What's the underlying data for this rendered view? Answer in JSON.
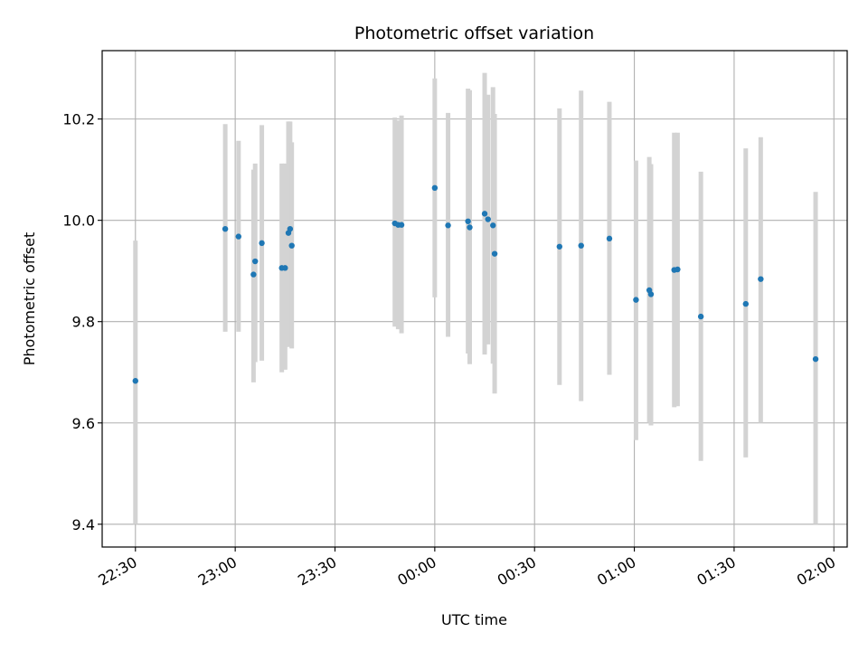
{
  "chart_data": {
    "type": "scatter",
    "title": "Photometric offset variation",
    "xlabel": "UTC time",
    "ylabel": "Photometric offset",
    "x_axis_kind": "time",
    "xlim": [
      "22:20",
      "02:04"
    ],
    "ylim": [
      9.355,
      10.335
    ],
    "grid": true,
    "x_ticks": [
      {
        "time": "22:30",
        "label": "22:30"
      },
      {
        "time": "23:00",
        "label": "23:00"
      },
      {
        "time": "23:30",
        "label": "23:30"
      },
      {
        "time": "00:00",
        "label": "00:00"
      },
      {
        "time": "00:30",
        "label": "00:30"
      },
      {
        "time": "01:00",
        "label": "01:00"
      },
      {
        "time": "01:30",
        "label": "01:30"
      },
      {
        "time": "02:00",
        "label": "02:00"
      }
    ],
    "y_ticks": [
      {
        "value": 9.4,
        "label": "9.4"
      },
      {
        "value": 9.6,
        "label": "9.6"
      },
      {
        "value": 9.8,
        "label": "9.8"
      },
      {
        "value": 10.0,
        "label": "10.0"
      },
      {
        "value": 10.2,
        "label": "10.2"
      }
    ],
    "colors": {
      "point": "#1f77b4",
      "errorbar": "#d3d3d3",
      "grid": "#b0b0b0",
      "axes": "#000000"
    },
    "points": [
      {
        "time": "22:30:00",
        "y": 9.683,
        "err_low": 9.4,
        "err_high": 9.96
      },
      {
        "time": "22:57:00",
        "y": 9.983,
        "err_low": 9.78,
        "err_high": 10.19
      },
      {
        "time": "23:01:00",
        "y": 9.968,
        "err_low": 9.78,
        "err_high": 10.157
      },
      {
        "time": "23:05:30",
        "y": 9.893,
        "err_low": 9.68,
        "err_high": 10.1
      },
      {
        "time": "23:06:00",
        "y": 9.919,
        "err_low": 9.72,
        "err_high": 10.112
      },
      {
        "time": "23:08:00",
        "y": 9.955,
        "err_low": 9.723,
        "err_high": 10.188
      },
      {
        "time": "23:14:00",
        "y": 9.906,
        "err_low": 9.7,
        "err_high": 10.112
      },
      {
        "time": "23:15:00",
        "y": 9.906,
        "err_low": 9.705,
        "err_high": 10.112
      },
      {
        "time": "23:16:00",
        "y": 9.975,
        "err_low": 9.75,
        "err_high": 10.195
      },
      {
        "time": "23:16:30",
        "y": 9.983,
        "err_low": 9.77,
        "err_high": 10.195
      },
      {
        "time": "23:17:00",
        "y": 9.95,
        "err_low": 9.747,
        "err_high": 10.154
      },
      {
        "time": "23:48:00",
        "y": 9.994,
        "err_low": 9.79,
        "err_high": 10.203
      },
      {
        "time": "23:49:00",
        "y": 9.991,
        "err_low": 9.785,
        "err_high": 10.197
      },
      {
        "time": "23:50:00",
        "y": 9.991,
        "err_low": 9.777,
        "err_high": 10.207
      },
      {
        "time": "00:00:00",
        "y": 10.064,
        "err_low": 9.848,
        "err_high": 10.28
      },
      {
        "time": "00:04:00",
        "y": 9.99,
        "err_low": 9.77,
        "err_high": 10.212
      },
      {
        "time": "00:10:00",
        "y": 9.998,
        "err_low": 9.737,
        "err_high": 10.26
      },
      {
        "time": "00:10:30",
        "y": 9.986,
        "err_low": 9.716,
        "err_high": 10.257
      },
      {
        "time": "00:15:00",
        "y": 10.013,
        "err_low": 9.735,
        "err_high": 10.291
      },
      {
        "time": "00:16:00",
        "y": 10.002,
        "err_low": 9.755,
        "err_high": 10.248
      },
      {
        "time": "00:17:30",
        "y": 9.99,
        "err_low": 9.717,
        "err_high": 10.263
      },
      {
        "time": "00:18:00",
        "y": 9.934,
        "err_low": 9.658,
        "err_high": 10.21
      },
      {
        "time": "00:37:30",
        "y": 9.948,
        "err_low": 9.675,
        "err_high": 10.221
      },
      {
        "time": "00:44:00",
        "y": 9.95,
        "err_low": 9.643,
        "err_high": 10.256
      },
      {
        "time": "00:52:30",
        "y": 9.964,
        "err_low": 9.695,
        "err_high": 10.234
      },
      {
        "time": "01:00:30",
        "y": 9.843,
        "err_low": 9.566,
        "err_high": 10.118
      },
      {
        "time": "01:04:30",
        "y": 9.862,
        "err_low": 9.6,
        "err_high": 10.125
      },
      {
        "time": "01:05:00",
        "y": 9.854,
        "err_low": 9.595,
        "err_high": 10.111
      },
      {
        "time": "01:12:00",
        "y": 9.902,
        "err_low": 9.631,
        "err_high": 10.173
      },
      {
        "time": "01:13:00",
        "y": 9.903,
        "err_low": 9.633,
        "err_high": 10.173
      },
      {
        "time": "01:20:00",
        "y": 9.81,
        "err_low": 9.525,
        "err_high": 10.096
      },
      {
        "time": "01:33:30",
        "y": 9.835,
        "err_low": 9.532,
        "err_high": 10.142
      },
      {
        "time": "01:38:00",
        "y": 9.884,
        "err_low": 9.6,
        "err_high": 10.164
      },
      {
        "time": "01:54:30",
        "y": 9.726,
        "err_low": 9.4,
        "err_high": 10.056
      }
    ]
  }
}
